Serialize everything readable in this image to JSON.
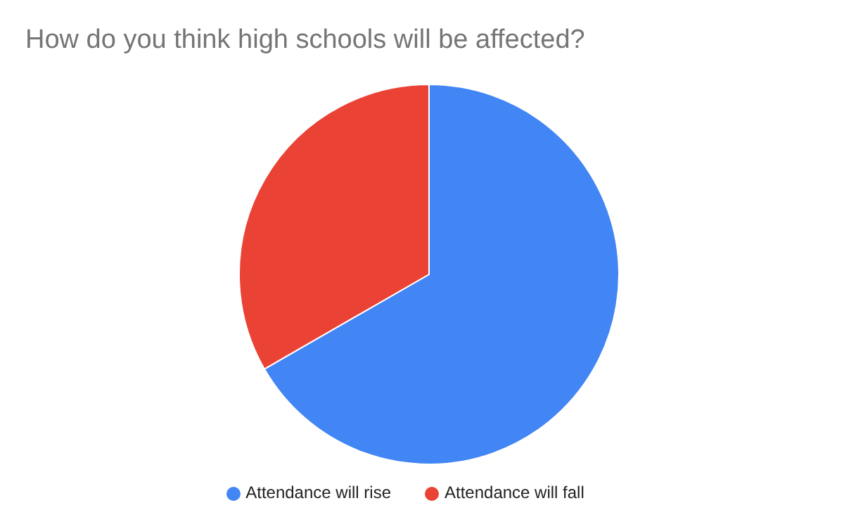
{
  "chart_data": {
    "type": "pie",
    "title": "How do you think high schools will be affected?",
    "categories": [
      "Attendance will rise",
      "Attendance will fall"
    ],
    "values": [
      66.7,
      33.3
    ],
    "colors": [
      "#4285f4",
      "#ea4335"
    ],
    "legend": "bottom"
  }
}
